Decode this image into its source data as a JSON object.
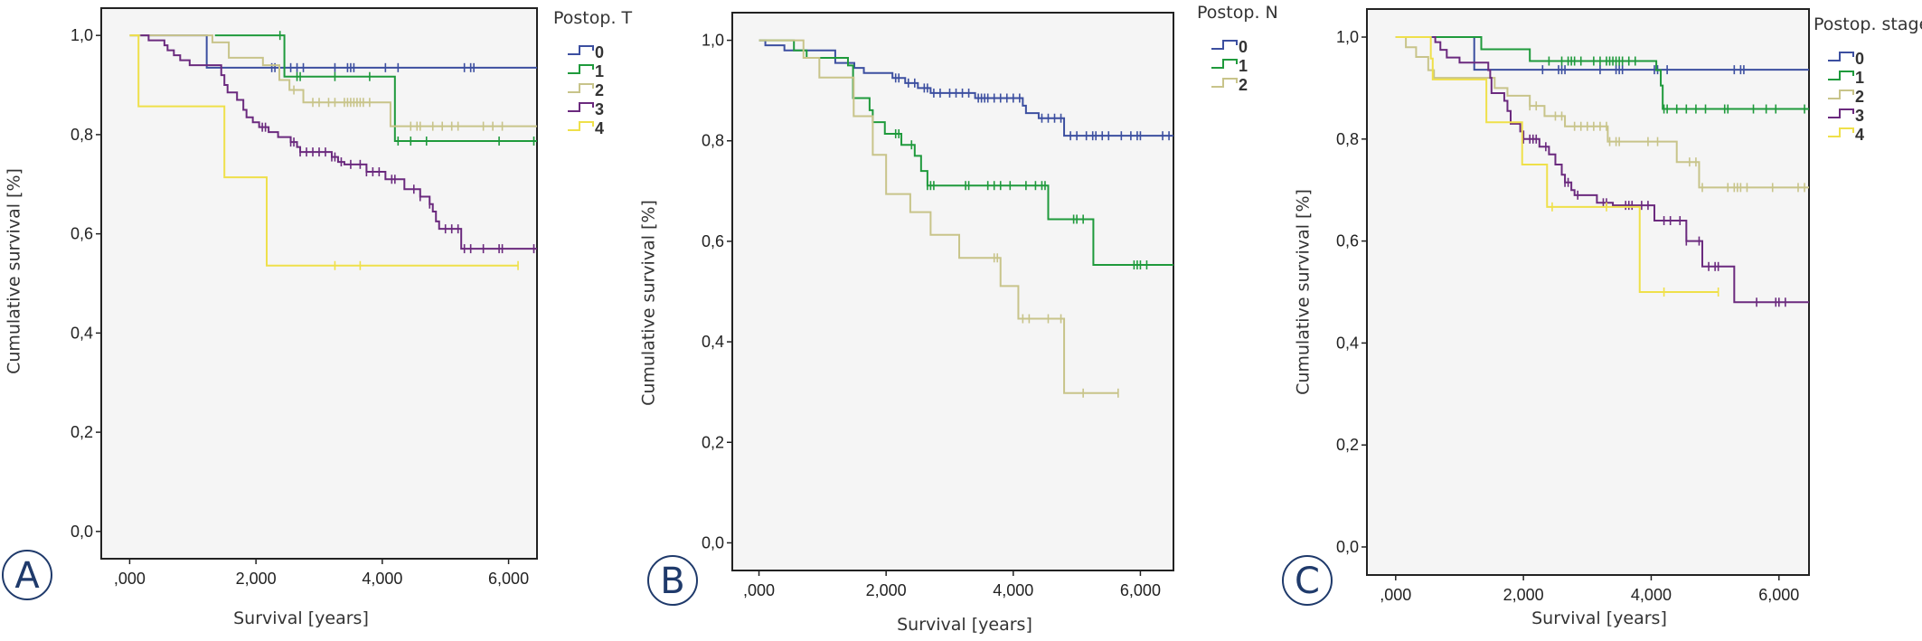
{
  "colors": {
    "0": "#3c4fa0",
    "1": "#1f9a3c",
    "2": "#c8c48a",
    "3": "#6b2a7e",
    "4": "#efe04a",
    "plot_bg": "#f5f5f5",
    "panel_letter": "#1f3a6b"
  },
  "chart_data": [
    {
      "type": "line",
      "subtype": "kaplan-meier step",
      "panel_label": "A",
      "xlabel": "Survival [years]",
      "ylabel": "Cumulative survival [%]",
      "xticks": [
        ",000",
        "2,000",
        "4,000",
        "6,000"
      ],
      "xtick_values": [
        0,
        2,
        4,
        6
      ],
      "yticks": [
        "0,0",
        "0,2",
        "0,4",
        "0,6",
        "0,8",
        "1,0"
      ],
      "ytick_values": [
        0,
        0.2,
        0.4,
        0.6,
        0.8,
        1.0
      ],
      "xlim": [
        -0.45,
        6.45
      ],
      "ylim": [
        -0.055,
        1.055
      ],
      "grid": false,
      "legend": {
        "title": "Postop. T",
        "placement": "right"
      },
      "series": [
        {
          "name": "0",
          "steps": [
            [
              0,
              1
            ],
            [
              1.22,
              0.935
            ]
          ],
          "end": 6.45,
          "censored": [
            2.25,
            2.3,
            2.55,
            2.65,
            2.75,
            3.25,
            3.45,
            3.5,
            3.55,
            4.05,
            4.25,
            5.3,
            5.4,
            5.45
          ]
        },
        {
          "name": "1",
          "steps": [
            [
              1.35,
              1
            ],
            [
              2.45,
              0.917
            ],
            [
              4.2,
              0.787
            ]
          ],
          "end": 6.45,
          "censored": [
            2.38,
            2.65,
            2.7,
            3.25,
            3.8,
            4.25,
            4.45,
            4.7,
            5.85,
            6.4
          ]
        },
        {
          "name": "2",
          "steps": [
            [
              0,
              1
            ],
            [
              1.31,
              0.986
            ],
            [
              1.57,
              0.955
            ],
            [
              2.11,
              0.94
            ],
            [
              2.37,
              0.91
            ],
            [
              2.53,
              0.89
            ],
            [
              2.75,
              0.865
            ],
            [
              4.13,
              0.817
            ]
          ],
          "end": 6.45,
          "censored": [
            2.6,
            2.9,
            3.0,
            3.15,
            3.25,
            3.4,
            3.45,
            3.5,
            3.55,
            3.6,
            3.65,
            3.7,
            3.8,
            4.45,
            4.55,
            4.6,
            4.8,
            4.95,
            5.1,
            5.2,
            5.6,
            5.75,
            5.9
          ]
        },
        {
          "name": "3",
          "steps": [
            [
              0.17,
              1
            ],
            [
              0.3,
              0.99
            ],
            [
              0.55,
              0.98
            ],
            [
              0.6,
              0.97
            ],
            [
              0.7,
              0.96
            ],
            [
              0.8,
              0.95
            ],
            [
              0.95,
              0.94
            ],
            [
              1.45,
              0.92
            ],
            [
              1.5,
              0.9
            ],
            [
              1.55,
              0.885
            ],
            [
              1.7,
              0.87
            ],
            [
              1.8,
              0.85
            ],
            [
              1.85,
              0.835
            ],
            [
              1.95,
              0.825
            ],
            [
              2.05,
              0.815
            ],
            [
              2.2,
              0.805
            ],
            [
              2.35,
              0.795
            ],
            [
              2.55,
              0.785
            ],
            [
              2.65,
              0.775
            ],
            [
              2.7,
              0.765
            ],
            [
              3.2,
              0.755
            ],
            [
              3.3,
              0.745
            ],
            [
              3.4,
              0.74
            ],
            [
              3.75,
              0.725
            ],
            [
              4.05,
              0.71
            ],
            [
              4.35,
              0.69
            ],
            [
              4.6,
              0.675
            ],
            [
              4.75,
              0.66
            ],
            [
              4.8,
              0.645
            ],
            [
              4.85,
              0.625
            ],
            [
              4.9,
              0.61
            ],
            [
              5.25,
              0.57
            ]
          ],
          "end": 6.45,
          "censored": [
            2.1,
            2.15,
            2.55,
            2.6,
            2.7,
            2.8,
            2.9,
            3.0,
            3.1,
            3.2,
            3.25,
            3.35,
            3.5,
            3.65,
            3.75,
            3.85,
            3.95,
            4.15,
            4.2,
            4.5,
            4.6,
            4.75,
            5.0,
            5.1,
            5.2,
            5.3,
            5.4,
            5.6,
            5.85,
            5.9,
            6.4
          ]
        },
        {
          "name": "4",
          "steps": [
            [
              0,
              1
            ],
            [
              0.14,
              0.857
            ],
            [
              1.5,
              0.714
            ],
            [
              2.17,
              0.536
            ]
          ],
          "end": 6.15,
          "censored": [
            3.25,
            3.65,
            6.15
          ]
        }
      ]
    },
    {
      "type": "line",
      "subtype": "kaplan-meier step",
      "panel_label": "B",
      "xlabel": "Survival [years]",
      "ylabel": "Cumulative survival [%]",
      "xticks": [
        ",000",
        "2,000",
        "4,000",
        "6,000"
      ],
      "xtick_values": [
        0,
        2,
        4,
        6
      ],
      "yticks": [
        "0,0",
        "0,2",
        "0,4",
        "0,6",
        "0,8",
        "1,0"
      ],
      "ytick_values": [
        0,
        0.2,
        0.4,
        0.6,
        0.8,
        1.0
      ],
      "xlim": [
        -0.42,
        6.52
      ],
      "ylim": [
        -0.055,
        1.055
      ],
      "grid": false,
      "legend": {
        "title": "Postop. N",
        "placement": "right"
      },
      "series": [
        {
          "name": "0",
          "steps": [
            [
              0,
              1
            ],
            [
              0.1,
              0.99
            ],
            [
              0.4,
              0.98
            ],
            [
              1.2,
              0.955
            ],
            [
              1.5,
              0.945
            ],
            [
              1.65,
              0.935
            ],
            [
              2.1,
              0.925
            ],
            [
              2.3,
              0.915
            ],
            [
              2.5,
              0.905
            ],
            [
              2.7,
              0.895
            ],
            [
              3.4,
              0.885
            ],
            [
              4.15,
              0.87
            ],
            [
              4.2,
              0.855
            ],
            [
              4.4,
              0.845
            ],
            [
              4.8,
              0.81
            ]
          ],
          "end": 6.52,
          "censored": [
            2.15,
            2.2,
            2.35,
            2.45,
            2.6,
            2.65,
            2.75,
            2.85,
            3.0,
            3.1,
            3.2,
            3.3,
            3.45,
            3.5,
            3.55,
            3.6,
            3.7,
            3.8,
            3.9,
            4.0,
            4.1,
            4.45,
            4.55,
            4.65,
            4.75,
            4.9,
            5.0,
            5.15,
            5.25,
            5.3,
            5.4,
            5.5,
            5.7,
            5.85,
            5.95,
            6.0,
            6.35,
            6.45
          ]
        },
        {
          "name": "1",
          "steps": [
            [
              0,
              1
            ],
            [
              0.55,
              0.98
            ],
            [
              0.75,
              0.965
            ],
            [
              1.4,
              0.95
            ],
            [
              1.48,
              0.885
            ],
            [
              1.74,
              0.861
            ],
            [
              1.79,
              0.837
            ],
            [
              1.98,
              0.814
            ],
            [
              2.24,
              0.792
            ],
            [
              2.45,
              0.77
            ],
            [
              2.55,
              0.74
            ],
            [
              2.65,
              0.711
            ],
            [
              4.55,
              0.644
            ],
            [
              5.26,
              0.553
            ]
          ],
          "end": 6.52,
          "censored": [
            2.15,
            2.2,
            2.4,
            2.65,
            2.7,
            2.75,
            3.25,
            3.3,
            3.6,
            3.7,
            3.8,
            3.95,
            4.2,
            4.35,
            4.45,
            4.5,
            4.95,
            5.0,
            5.1,
            5.9,
            5.95,
            6.0,
            6.1
          ]
        },
        {
          "name": "2",
          "steps": [
            [
              0,
              1
            ],
            [
              0.7,
              0.965
            ],
            [
              0.95,
              0.926
            ],
            [
              1.49,
              0.849
            ],
            [
              1.79,
              0.772
            ],
            [
              2.0,
              0.694
            ],
            [
              2.38,
              0.658
            ],
            [
              2.7,
              0.613
            ],
            [
              3.15,
              0.567
            ],
            [
              3.8,
              0.511
            ],
            [
              4.08,
              0.446
            ],
            [
              4.8,
              0.298
            ]
          ],
          "end": 5.65,
          "censored": [
            3.7,
            3.75,
            4.15,
            4.25,
            4.55,
            4.75,
            5.1,
            5.65
          ]
        }
      ]
    },
    {
      "type": "line",
      "subtype": "kaplan-meier step",
      "panel_label": "C",
      "xlabel": "Survival [years]",
      "ylabel": "Cumulative survival [%]",
      "xticks": [
        ",000",
        "2,000",
        "4,000",
        "6,000"
      ],
      "xtick_values": [
        0,
        2,
        4,
        6
      ],
      "yticks": [
        "0,0",
        "0,2",
        "0,4",
        "0,6",
        "0,8",
        "1,0"
      ],
      "ytick_values": [
        0,
        0.2,
        0.4,
        0.6,
        0.8,
        1.0
      ],
      "xlim": [
        -0.45,
        6.47
      ],
      "ylim": [
        -0.055,
        1.055
      ],
      "grid": false,
      "legend": {
        "title": "Postop. stage",
        "placement": "right"
      },
      "series": [
        {
          "name": "0",
          "steps": [
            [
              0,
              1
            ],
            [
              1.23,
              0.936
            ]
          ],
          "end": 6.47,
          "censored": [
            2.3,
            2.55,
            2.6,
            2.65,
            3.2,
            3.45,
            3.5,
            3.55,
            4.05,
            4.1,
            4.25,
            5.3,
            5.4,
            5.45
          ]
        },
        {
          "name": "1",
          "steps": [
            [
              0.6,
              1
            ],
            [
              1.34,
              0.976
            ],
            [
              2.1,
              0.953
            ],
            [
              4.08,
              0.935
            ],
            [
              4.15,
              0.905
            ],
            [
              4.18,
              0.859
            ]
          ],
          "end": 6.47,
          "censored": [
            2.4,
            2.6,
            2.7,
            2.75,
            2.8,
            2.9,
            3.1,
            3.2,
            3.3,
            3.35,
            3.4,
            3.45,
            3.5,
            3.55,
            3.65,
            3.75,
            4.2,
            4.25,
            4.4,
            4.55,
            4.7,
            4.85,
            5.15,
            5.2,
            5.6,
            5.8,
            5.95,
            6.4
          ]
        },
        {
          "name": "2",
          "steps": [
            [
              0,
              1
            ],
            [
              0.16,
              0.98
            ],
            [
              0.32,
              0.961
            ],
            [
              0.51,
              0.935
            ],
            [
              0.6,
              0.92
            ],
            [
              1.55,
              0.9
            ],
            [
              1.75,
              0.885
            ],
            [
              2.1,
              0.865
            ],
            [
              2.33,
              0.845
            ],
            [
              2.65,
              0.825
            ],
            [
              3.32,
              0.795
            ],
            [
              4.4,
              0.755
            ],
            [
              4.75,
              0.705
            ]
          ],
          "end": 6.47,
          "censored": [
            2.1,
            2.2,
            2.5,
            2.6,
            2.8,
            2.9,
            3.0,
            3.1,
            3.2,
            3.3,
            3.35,
            3.45,
            3.5,
            3.95,
            4.1,
            4.6,
            4.7,
            4.8,
            5.2,
            5.3,
            5.35,
            5.4,
            5.5,
            5.9,
            6.3,
            6.4
          ]
        },
        {
          "name": "3",
          "steps": [
            [
              0.58,
              1
            ],
            [
              0.62,
              0.99
            ],
            [
              0.7,
              0.975
            ],
            [
              0.8,
              0.96
            ],
            [
              1.0,
              0.95
            ],
            [
              1.45,
              0.935
            ],
            [
              1.48,
              0.92
            ],
            [
              1.5,
              0.89
            ],
            [
              1.7,
              0.875
            ],
            [
              1.75,
              0.855
            ],
            [
              1.8,
              0.83
            ],
            [
              1.95,
              0.815
            ],
            [
              2.0,
              0.8
            ],
            [
              2.25,
              0.785
            ],
            [
              2.4,
              0.77
            ],
            [
              2.5,
              0.75
            ],
            [
              2.6,
              0.73
            ],
            [
              2.65,
              0.715
            ],
            [
              2.75,
              0.7
            ],
            [
              2.8,
              0.69
            ],
            [
              3.15,
              0.675
            ],
            [
              3.4,
              0.67
            ],
            [
              4.05,
              0.64
            ],
            [
              4.55,
              0.6
            ],
            [
              4.8,
              0.55
            ],
            [
              5.3,
              0.48
            ]
          ],
          "end": 6.47,
          "censored": [
            2.0,
            2.1,
            2.15,
            2.2,
            2.35,
            2.65,
            2.7,
            2.85,
            3.25,
            3.3,
            3.6,
            3.65,
            3.7,
            3.85,
            3.95,
            4.2,
            4.3,
            4.45,
            4.55,
            4.75,
            4.9,
            5.0,
            5.05,
            5.65,
            5.95,
            6.0,
            6.1
          ]
        },
        {
          "name": "4",
          "steps": [
            [
              0,
              1
            ],
            [
              0.55,
              0.958
            ],
            [
              0.58,
              0.917
            ],
            [
              1.42,
              0.833
            ],
            [
              1.98,
              0.75
            ],
            [
              2.37,
              0.667
            ],
            [
              3.82,
              0.5
            ]
          ],
          "end": 5.05,
          "censored": [
            2.45,
            3.3,
            4.2,
            5.05
          ]
        }
      ]
    }
  ]
}
